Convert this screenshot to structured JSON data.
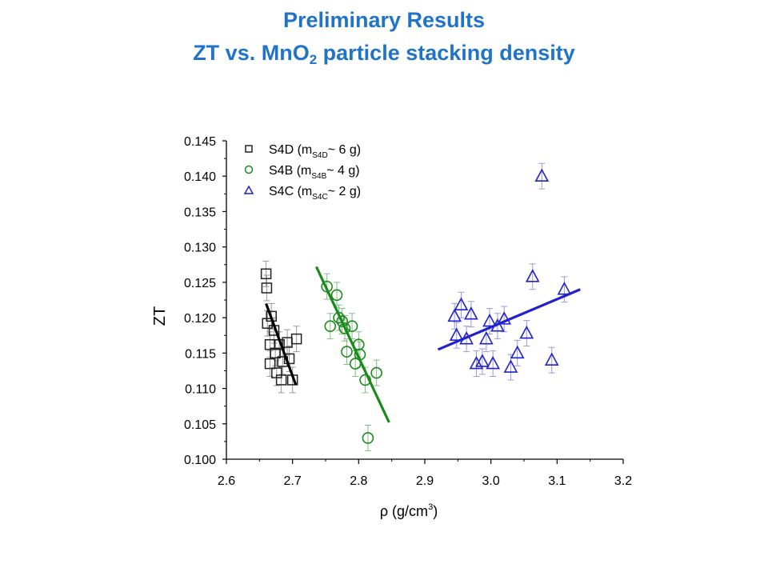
{
  "slide": {
    "title_line1": "Preliminary Results",
    "title_line2_pre": "ZT vs. MnO",
    "title_line2_sub": "2",
    "title_line2_post": " particle stacking density"
  },
  "chart_data": {
    "type": "scatter",
    "xlabel_pre": "ρ (g/cm",
    "xlabel_sup": "3",
    "xlabel_post": ")",
    "ylabel": "ZT",
    "xlim": [
      2.6,
      3.2
    ],
    "ylim": [
      0.1,
      0.145
    ],
    "xticks": [
      "2.6",
      "2.7",
      "2.8",
      "2.9",
      "3.0",
      "3.1",
      "3.2"
    ],
    "yticks": [
      "0.100",
      "0.105",
      "0.110",
      "0.115",
      "0.120",
      "0.125",
      "0.130",
      "0.135",
      "0.140",
      "0.145"
    ],
    "grid": false,
    "legend_position": "top-left",
    "series": [
      {
        "name": "S4D",
        "legend_main": "S4D (m",
        "legend_sub": "S4D",
        "legend_post": "~ 6 g)",
        "marker": "square",
        "color": "#222222",
        "errorbar_color": "#999999",
        "points": [
          [
            2.66,
            0.1262
          ],
          [
            2.661,
            0.1242
          ],
          [
            2.662,
            0.1192
          ],
          [
            2.666,
            0.1162
          ],
          [
            2.668,
            0.1202
          ],
          [
            2.672,
            0.1182
          ],
          [
            2.666,
            0.1135
          ],
          [
            2.674,
            0.115
          ],
          [
            2.676,
            0.1122
          ],
          [
            2.68,
            0.1162
          ],
          [
            2.683,
            0.1112
          ],
          [
            2.685,
            0.1138
          ],
          [
            2.692,
            0.1165
          ],
          [
            2.695,
            0.1142
          ],
          [
            2.7,
            0.1112
          ],
          [
            2.706,
            0.117
          ]
        ],
        "fit": [
          [
            2.66,
            0.122
          ],
          [
            2.705,
            0.1105
          ]
        ]
      },
      {
        "name": "S4B",
        "legend_main": "S4B (m",
        "legend_sub": "S4B",
        "legend_post": "~ 4 g)",
        "marker": "circle",
        "color": "#1a8a1a",
        "errorbar_color": "#88bb88",
        "points": [
          [
            2.752,
            0.1244
          ],
          [
            2.767,
            0.1232
          ],
          [
            2.757,
            0.1188
          ],
          [
            2.77,
            0.12
          ],
          [
            2.775,
            0.1195
          ],
          [
            2.779,
            0.1185
          ],
          [
            2.79,
            0.1188
          ],
          [
            2.782,
            0.1152
          ],
          [
            2.795,
            0.1135
          ],
          [
            2.8,
            0.1162
          ],
          [
            2.802,
            0.1148
          ],
          [
            2.81,
            0.1112
          ],
          [
            2.827,
            0.1122
          ],
          [
            2.814,
            0.103
          ]
        ],
        "fit": [
          [
            2.736,
            0.1272
          ],
          [
            2.846,
            0.1052
          ]
        ]
      },
      {
        "name": "S4C",
        "legend_main": "S4C (m",
        "legend_sub": "S4C",
        "legend_post": "~ 2 g)",
        "marker": "triangle",
        "color": "#2222cc",
        "errorbar_color": "#9999dd",
        "points": [
          [
            2.945,
            0.1202
          ],
          [
            2.955,
            0.1218
          ],
          [
            2.948,
            0.1175
          ],
          [
            2.963,
            0.117
          ],
          [
            2.97,
            0.1205
          ],
          [
            2.978,
            0.1135
          ],
          [
            2.987,
            0.1138
          ],
          [
            2.993,
            0.117
          ],
          [
            2.998,
            0.1195
          ],
          [
            3.003,
            0.1135
          ],
          [
            3.01,
            0.1188
          ],
          [
            3.02,
            0.1198
          ],
          [
            3.03,
            0.113
          ],
          [
            3.04,
            0.115
          ],
          [
            3.054,
            0.1178
          ],
          [
            3.063,
            0.1258
          ],
          [
            3.077,
            0.14
          ],
          [
            3.092,
            0.114
          ],
          [
            3.111,
            0.124
          ]
        ],
        "fit": [
          [
            2.92,
            0.1155
          ],
          [
            3.135,
            0.124
          ]
        ]
      }
    ]
  }
}
